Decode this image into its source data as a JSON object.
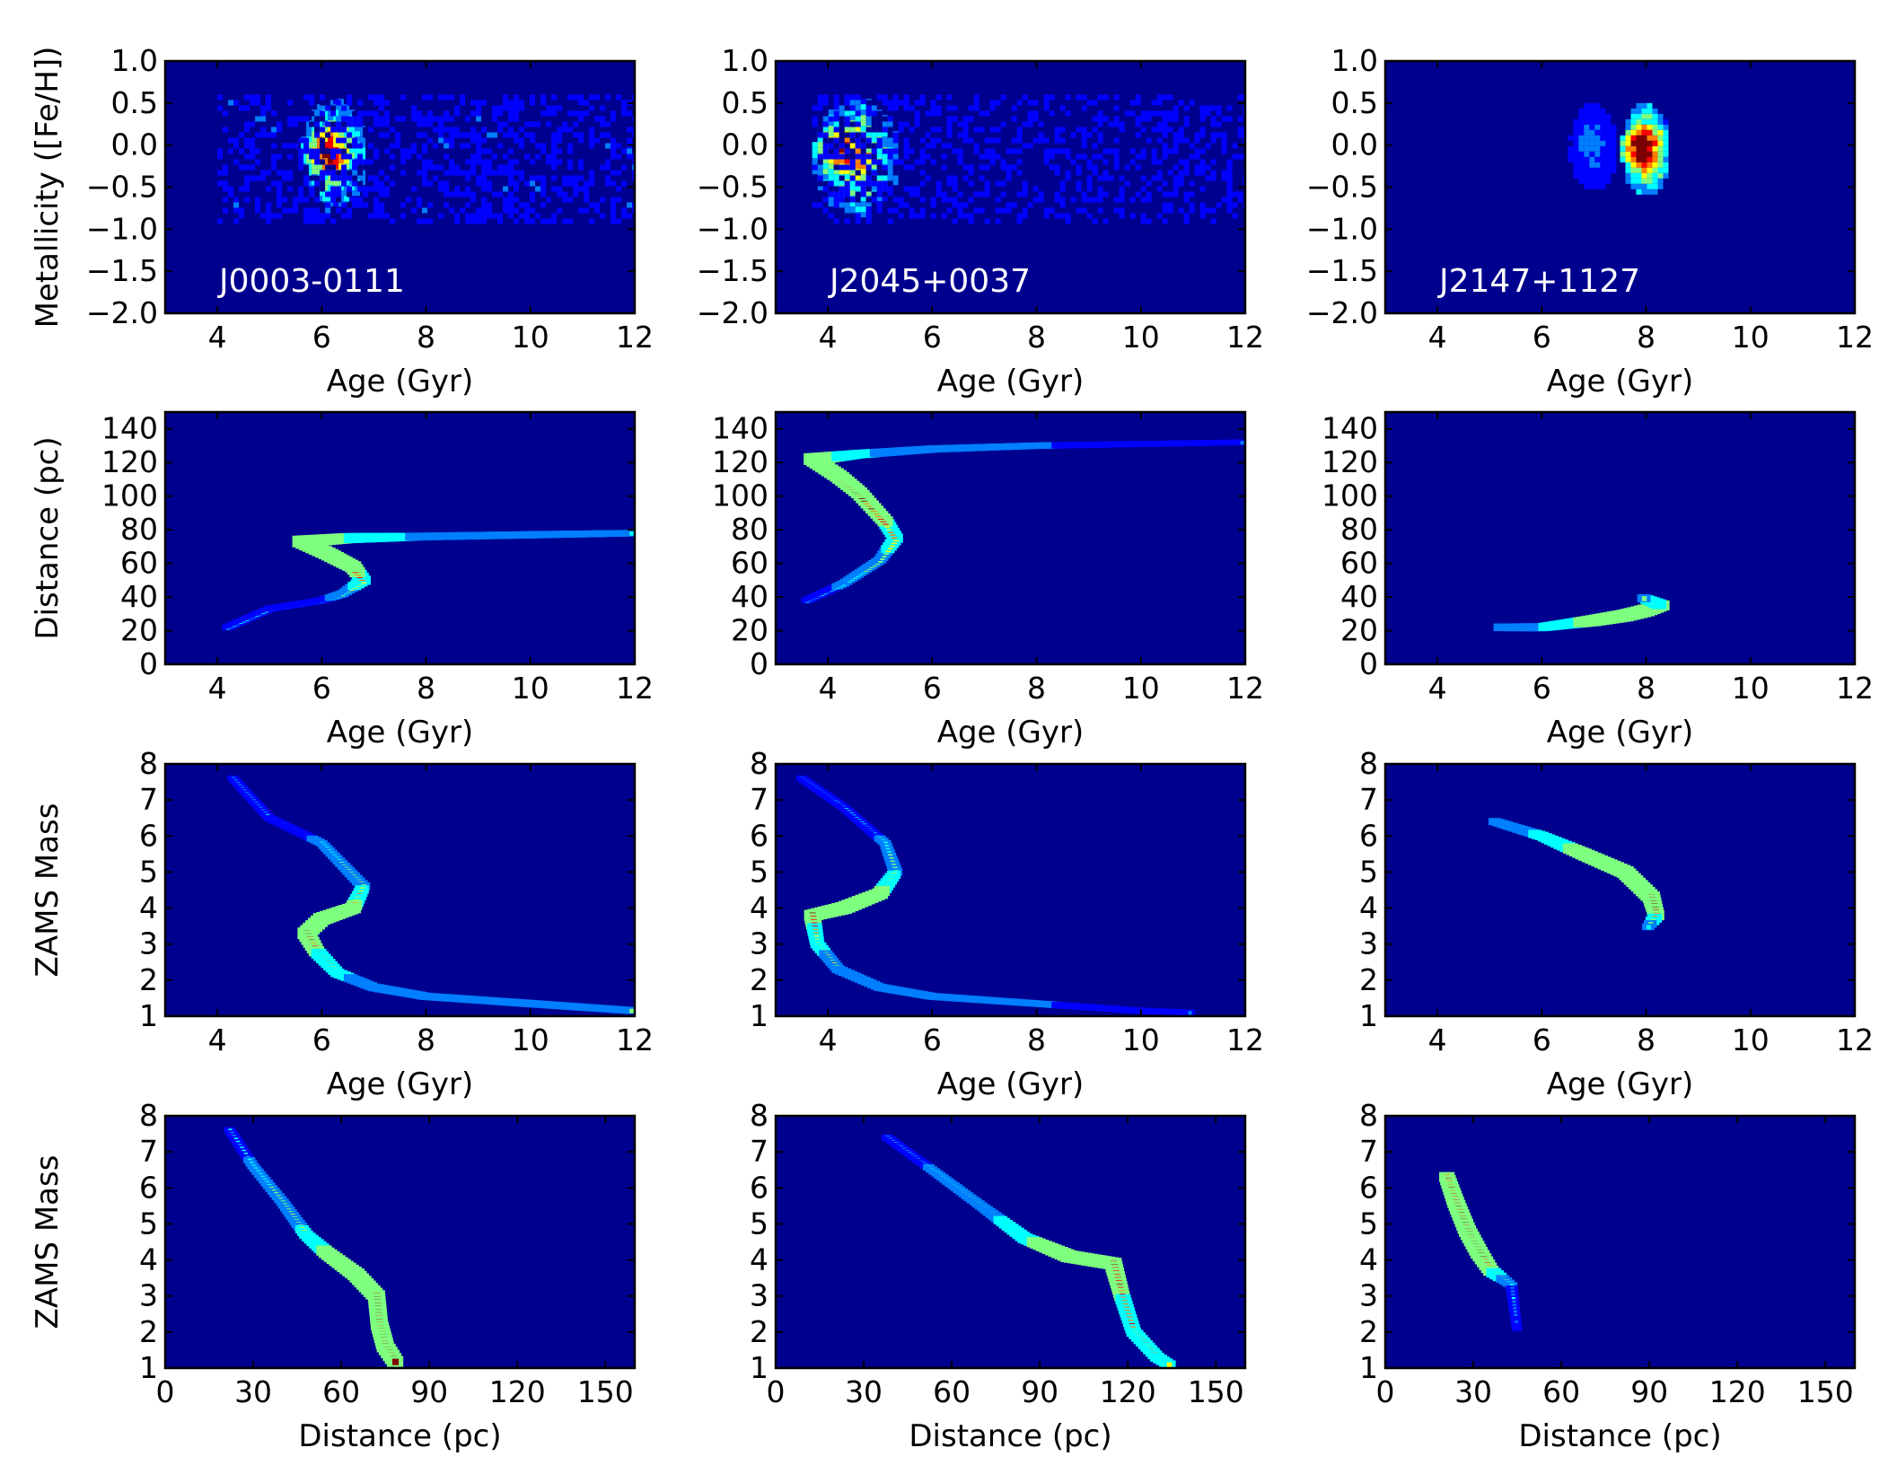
{
  "colors": {
    "background": "#00008f",
    "colormap": [
      "#00008f",
      "#0000ff",
      "#007fff",
      "#00ffff",
      "#7fff7f",
      "#ffff00",
      "#ff7f00",
      "#ff0000",
      "#7f0000"
    ]
  },
  "chart_data": [
    {
      "type": "heatmap",
      "panel": "r1c1",
      "label": "J0003-0111",
      "xlabel": "Age (Gyr)",
      "ylabel": "Metallicity ([Fe/H])",
      "xlim": [
        3,
        12
      ],
      "ylim": [
        -2.0,
        1.0
      ],
      "xticks": [
        "4",
        "6",
        "8",
        "10",
        "12"
      ],
      "yticks": [
        "−2.0",
        "−1.5",
        "−1.0",
        "−0.5",
        "0.0",
        "0.5",
        "1.0"
      ],
      "features": [
        {
          "kind": "blob",
          "x": [
            5.6,
            6.8
          ],
          "y": [
            -0.7,
            0.55
          ],
          "peak": [
            6.0,
            -0.05
          ],
          "level": 0.8
        },
        {
          "kind": "haze",
          "x": [
            4.0,
            12.0
          ],
          "y": [
            -0.9,
            0.6
          ],
          "level": 0.12
        }
      ]
    },
    {
      "type": "heatmap",
      "panel": "r1c2",
      "label": "J2045+0037",
      "xlabel": "Age (Gyr)",
      "ylabel": "",
      "xlim": [
        3,
        12
      ],
      "ylim": [
        -2.0,
        1.0
      ],
      "xticks": [
        "4",
        "6",
        "8",
        "10",
        "12"
      ],
      "yticks": [
        "−2.0",
        "−1.5",
        "−1.0",
        "−0.5",
        "0.0",
        "0.5",
        "1.0"
      ],
      "features": [
        {
          "kind": "blob",
          "x": [
            3.7,
            5.3
          ],
          "y": [
            -0.8,
            0.55
          ],
          "peak": [
            4.1,
            0.0
          ],
          "level": 0.8
        },
        {
          "kind": "haze",
          "x": [
            3.7,
            12.0
          ],
          "y": [
            -0.9,
            0.6
          ],
          "level": 0.1
        }
      ]
    },
    {
      "type": "heatmap",
      "panel": "r1c3",
      "label": "J2147+1127",
      "xlabel": "Age (Gyr)",
      "ylabel": "",
      "xlim": [
        3,
        12
      ],
      "ylim": [
        -2.0,
        1.0
      ],
      "xticks": [
        "4",
        "6",
        "8",
        "10",
        "12"
      ],
      "yticks": [
        "−2.0",
        "−1.5",
        "−1.0",
        "−0.5",
        "0.0",
        "0.5",
        "1.0"
      ],
      "features": [
        {
          "kind": "blob",
          "x": [
            7.5,
            8.4
          ],
          "y": [
            -0.55,
            0.5
          ],
          "peak": [
            7.8,
            0.0
          ],
          "level": 0.95
        },
        {
          "kind": "blob",
          "x": [
            6.5,
            7.4
          ],
          "y": [
            -0.5,
            0.5
          ],
          "level": 0.3
        }
      ]
    },
    {
      "type": "heatmap",
      "panel": "r2c1",
      "xlabel": "Age (Gyr)",
      "ylabel": "Distance (pc)",
      "xlim": [
        3,
        12
      ],
      "ylim": [
        0,
        150
      ],
      "xticks": [
        "4",
        "6",
        "8",
        "10",
        "12"
      ],
      "yticks": [
        "0",
        "20",
        "40",
        "60",
        "80",
        "100",
        "120",
        "140"
      ],
      "features": [
        {
          "kind": "track",
          "points": [
            [
              4.2,
              22
            ],
            [
              5.0,
              33
            ],
            [
              6.0,
              38
            ],
            [
              6.4,
              42
            ],
            [
              6.8,
              50
            ],
            [
              6.6,
              58
            ],
            [
              6.1,
              66
            ],
            [
              5.6,
              73
            ],
            [
              6.5,
              75
            ],
            [
              8.0,
              76
            ],
            [
              10.0,
              77
            ],
            [
              12.0,
              78
            ]
          ],
          "levels": [
            0.3,
            0.3,
            0.3,
            0.4,
            0.7,
            0.9,
            1.0,
            1.0,
            0.8,
            0.5,
            0.45,
            0.35
          ]
        }
      ]
    },
    {
      "type": "heatmap",
      "panel": "r2c2",
      "xlabel": "Age (Gyr)",
      "ylabel": "",
      "xlim": [
        3,
        12
      ],
      "ylim": [
        0,
        150
      ],
      "xticks": [
        "4",
        "6",
        "8",
        "10",
        "12"
      ],
      "yticks": [
        "0",
        "20",
        "40",
        "60",
        "80",
        "100",
        "120",
        "140"
      ],
      "features": [
        {
          "kind": "track",
          "points": [
            [
              3.6,
              38
            ],
            [
              4.3,
              48
            ],
            [
              5.0,
              62
            ],
            [
              5.3,
              75
            ],
            [
              5.1,
              85
            ],
            [
              4.6,
              102
            ],
            [
              4.2,
              112
            ],
            [
              3.7,
              122
            ],
            [
              4.6,
              125
            ],
            [
              6.0,
              128
            ],
            [
              8.0,
              130
            ],
            [
              10.0,
              131
            ],
            [
              12.0,
              132
            ]
          ],
          "levels": [
            0.3,
            0.35,
            0.45,
            0.7,
            0.8,
            0.9,
            1.0,
            1.0,
            0.6,
            0.45,
            0.35,
            0.3,
            0.25
          ]
        }
      ]
    },
    {
      "type": "heatmap",
      "panel": "r2c3",
      "xlabel": "Age (Gyr)",
      "ylabel": "",
      "xlim": [
        3,
        12
      ],
      "ylim": [
        0,
        150
      ],
      "xticks": [
        "4",
        "6",
        "8",
        "10",
        "12"
      ],
      "yticks": [
        "0",
        "20",
        "40",
        "60",
        "80",
        "100",
        "120",
        "140"
      ],
      "features": [
        {
          "kind": "track",
          "points": [
            [
              5.2,
              22
            ],
            [
              6.0,
              22
            ],
            [
              6.5,
              24
            ],
            [
              7.0,
              26
            ],
            [
              7.6,
              29
            ],
            [
              8.0,
              32
            ],
            [
              8.3,
              35
            ],
            [
              7.9,
              40
            ]
          ],
          "levels": [
            0.5,
            0.55,
            0.7,
            0.9,
            1.0,
            1.0,
            0.8,
            0.5
          ]
        }
      ]
    },
    {
      "type": "heatmap",
      "panel": "r3c1",
      "xlabel": "Age (Gyr)",
      "ylabel": "ZAMS Mass",
      "xlim": [
        3,
        12
      ],
      "ylim": [
        1,
        8
      ],
      "xticks": [
        "4",
        "6",
        "8",
        "10",
        "12"
      ],
      "yticks": [
        "1",
        "2",
        "3",
        "4",
        "5",
        "6",
        "7",
        "8"
      ],
      "features": [
        {
          "kind": "track",
          "points": [
            [
              4.3,
              7.6
            ],
            [
              5.0,
              6.5
            ],
            [
              6.0,
              5.8
            ],
            [
              6.8,
              4.6
            ],
            [
              6.6,
              4.0
            ],
            [
              6.0,
              3.7
            ],
            [
              5.7,
              3.3
            ],
            [
              5.9,
              2.8
            ],
            [
              6.3,
              2.2
            ],
            [
              7.0,
              1.8
            ],
            [
              8.0,
              1.55
            ],
            [
              10.0,
              1.35
            ],
            [
              12.0,
              1.15
            ]
          ],
          "levels": [
            0.25,
            0.3,
            0.35,
            0.55,
            0.85,
            1.0,
            1.0,
            0.8,
            0.6,
            0.5,
            0.45,
            0.45,
            0.4
          ]
        }
      ]
    },
    {
      "type": "heatmap",
      "panel": "r3c2",
      "xlabel": "Age (Gyr)",
      "ylabel": "",
      "xlim": [
        3,
        12
      ],
      "ylim": [
        1,
        8
      ],
      "xticks": [
        "4",
        "6",
        "8",
        "10",
        "12"
      ],
      "yticks": [
        "1",
        "2",
        "3",
        "4",
        "5",
        "6",
        "7",
        "8"
      ],
      "features": [
        {
          "kind": "track",
          "points": [
            [
              3.5,
              7.6
            ],
            [
              4.3,
              6.8
            ],
            [
              5.1,
              5.8
            ],
            [
              5.3,
              5.0
            ],
            [
              5.0,
              4.4
            ],
            [
              4.3,
              4.0
            ],
            [
              3.7,
              3.8
            ],
            [
              3.8,
              3.0
            ],
            [
              4.2,
              2.3
            ],
            [
              5.0,
              1.8
            ],
            [
              6.0,
              1.55
            ],
            [
              8.0,
              1.35
            ],
            [
              10.0,
              1.15
            ],
            [
              11.0,
              1.1
            ]
          ],
          "levels": [
            0.25,
            0.3,
            0.35,
            0.55,
            0.85,
            1.0,
            0.9,
            0.6,
            0.5,
            0.45,
            0.4,
            0.35,
            0.3,
            0.25
          ]
        }
      ]
    },
    {
      "type": "heatmap",
      "panel": "r3c3",
      "xlabel": "Age (Gyr)",
      "ylabel": "",
      "xlim": [
        3,
        12
      ],
      "ylim": [
        1,
        8
      ],
      "xticks": [
        "4",
        "6",
        "8",
        "10",
        "12"
      ],
      "yticks": [
        "1",
        "2",
        "3",
        "4",
        "5",
        "6",
        "7",
        "8"
      ],
      "features": [
        {
          "kind": "track",
          "points": [
            [
              5.1,
              6.4
            ],
            [
              6.0,
              6.0
            ],
            [
              6.8,
              5.5
            ],
            [
              7.6,
              5.0
            ],
            [
              8.1,
              4.3
            ],
            [
              8.2,
              3.8
            ],
            [
              8.0,
              3.4
            ]
          ],
          "levels": [
            0.45,
            0.6,
            0.9,
            1.0,
            1.0,
            0.8,
            0.3
          ]
        }
      ]
    },
    {
      "type": "heatmap",
      "panel": "r4c1",
      "xlabel": "Distance (pc)",
      "ylabel": "ZAMS Mass",
      "xlim": [
        0,
        160
      ],
      "ylim": [
        1,
        8
      ],
      "xticks": [
        "0",
        "30",
        "60",
        "90",
        "120",
        "150"
      ],
      "yticks": [
        "1",
        "2",
        "3",
        "4",
        "5",
        "6",
        "7",
        "8"
      ],
      "features": [
        {
          "kind": "track",
          "points": [
            [
              22,
              7.6
            ],
            [
              30,
              6.6
            ],
            [
              40,
              5.6
            ],
            [
              48,
              4.7
            ],
            [
              55,
              4.2
            ],
            [
              65,
              3.6
            ],
            [
              72,
              3.0
            ],
            [
              73,
              2.2
            ],
            [
              75,
              1.6
            ],
            [
              79,
              1.1
            ]
          ],
          "levels": [
            0.3,
            0.35,
            0.45,
            0.6,
            0.85,
            1.0,
            1.0,
            1.0,
            1.0,
            0.9
          ]
        }
      ]
    },
    {
      "type": "heatmap",
      "panel": "r4c2",
      "xlabel": "Distance (pc)",
      "ylabel": "",
      "xlim": [
        0,
        160
      ],
      "ylim": [
        1,
        8
      ],
      "xticks": [
        "0",
        "30",
        "60",
        "90",
        "120",
        "150"
      ],
      "yticks": [
        "1",
        "2",
        "3",
        "4",
        "5",
        "6",
        "7",
        "8"
      ],
      "features": [
        {
          "kind": "track",
          "points": [
            [
              38,
              7.4
            ],
            [
              55,
              6.4
            ],
            [
              70,
              5.5
            ],
            [
              85,
              4.6
            ],
            [
              100,
              4.1
            ],
            [
              115,
              3.9
            ],
            [
              118,
              3.0
            ],
            [
              122,
              2.0
            ],
            [
              130,
              1.3
            ],
            [
              135,
              1.05
            ]
          ],
          "levels": [
            0.3,
            0.35,
            0.45,
            0.75,
            1.0,
            1.0,
            0.8,
            0.7,
            0.65,
            0.55
          ]
        }
      ]
    },
    {
      "type": "heatmap",
      "panel": "r4c3",
      "xlabel": "Distance (pc)",
      "ylabel": "",
      "xlim": [
        0,
        160
      ],
      "ylim": [
        1,
        8
      ],
      "xticks": [
        "0",
        "30",
        "60",
        "90",
        "120",
        "150"
      ],
      "yticks": [
        "1",
        "2",
        "3",
        "4",
        "5",
        "6",
        "7",
        "8"
      ],
      "features": [
        {
          "kind": "track",
          "points": [
            [
              21,
              6.3
            ],
            [
              24,
              5.6
            ],
            [
              28,
              4.8
            ],
            [
              32,
              4.2
            ],
            [
              36,
              3.7
            ],
            [
              43,
              3.3
            ],
            [
              45,
              2.0
            ]
          ],
          "levels": [
            0.8,
            0.95,
            1.0,
            1.0,
            0.8,
            0.35,
            0.12
          ]
        }
      ]
    }
  ]
}
